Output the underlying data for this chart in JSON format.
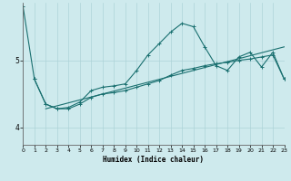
{
  "xlabel": "Humidex (Indice chaleur)",
  "background_color": "#ceeaed",
  "line_color": "#1a7070",
  "grid_color": "#aed4d8",
  "x_ticks": [
    0,
    1,
    2,
    3,
    4,
    5,
    6,
    7,
    8,
    9,
    10,
    11,
    12,
    13,
    14,
    15,
    16,
    17,
    18,
    19,
    20,
    21,
    22,
    23
  ],
  "y_ticks": [
    4,
    5
  ],
  "xlim": [
    0,
    23
  ],
  "ylim": [
    3.75,
    5.85
  ],
  "line1_x": [
    0,
    1,
    2,
    3,
    4,
    5,
    6,
    7,
    8,
    9,
    10,
    11,
    12,
    13,
    14,
    15,
    16,
    17,
    18,
    19,
    20,
    21,
    22,
    23
  ],
  "line1_y": [
    5.8,
    4.72,
    4.35,
    4.28,
    4.3,
    4.38,
    4.55,
    4.6,
    4.62,
    4.65,
    4.85,
    5.08,
    5.25,
    5.42,
    5.55,
    5.5,
    5.2,
    4.92,
    4.85,
    5.05,
    5.12,
    4.9,
    5.12,
    4.72
  ],
  "line2_x": [
    1,
    2,
    3,
    4,
    5,
    6,
    7,
    8,
    9,
    10,
    11,
    12,
    13,
    14,
    15,
    16,
    17,
    18,
    19,
    20,
    21,
    22,
    23
  ],
  "line2_y": [
    4.72,
    4.35,
    4.28,
    4.28,
    4.35,
    4.45,
    4.5,
    4.52,
    4.55,
    4.6,
    4.65,
    4.7,
    4.78,
    4.85,
    4.88,
    4.92,
    4.95,
    4.97,
    5.0,
    5.02,
    5.05,
    5.08,
    4.72
  ],
  "line3_x": [
    2,
    23
  ],
  "line3_y": [
    4.28,
    5.2
  ],
  "marker_size": 2.5,
  "line_width": 0.8
}
